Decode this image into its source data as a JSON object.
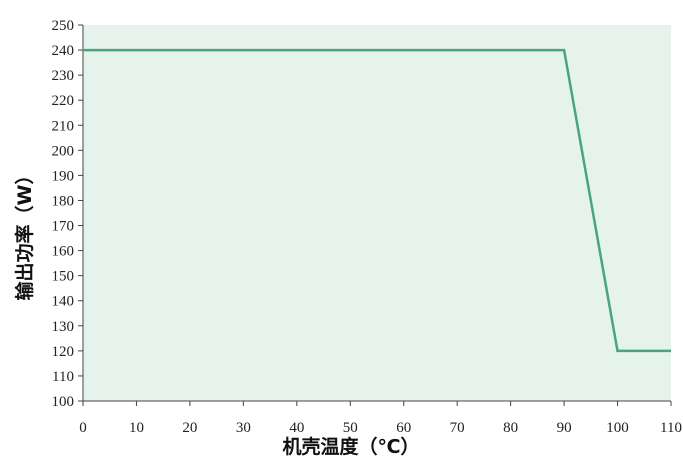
{
  "chart_data": {
    "type": "line",
    "xlabel": "机壳温度（℃）",
    "ylabel": "输出功率（W）",
    "xlim": [
      0,
      110
    ],
    "ylim": [
      100,
      250
    ],
    "x_ticks": [
      "0",
      "10",
      "20",
      "30",
      "40",
      "50",
      "60",
      "70",
      "80",
      "90",
      "100",
      "110"
    ],
    "y_ticks": [
      "100",
      "110",
      "120",
      "130",
      "140",
      "150",
      "160",
      "170",
      "180",
      "190",
      "200",
      "210",
      "220",
      "230",
      "240",
      "250"
    ],
    "grid": false,
    "series": [
      {
        "x": [
          0,
          90,
          100,
          110
        ],
        "y": [
          240,
          240,
          120,
          120
        ]
      }
    ],
    "colors": {
      "line": "#4aa57e",
      "plot_background": "#e6f2ec",
      "axis": "#444444"
    }
  }
}
